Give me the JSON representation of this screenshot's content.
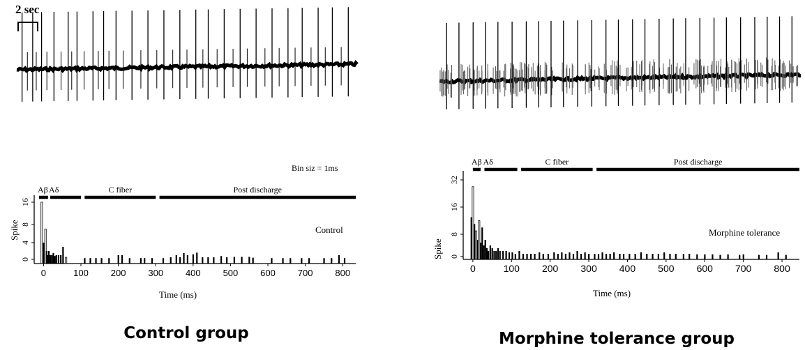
{
  "figure": {
    "scale_bar_label": "2 sec",
    "colors": {
      "ink": "#000000",
      "bar_hollow": "#ffffff",
      "trace_light": "#555555"
    }
  },
  "chart_data": [
    {
      "type": "line",
      "panel": "control-trace",
      "description_units": "raw extracellular recording",
      "spike_times_s": [
        0.3,
        0.9,
        1.4,
        2.1,
        2.9,
        3.4,
        4.3,
        4.9,
        5.6,
        6.5,
        7.4,
        8.3,
        9.2,
        10.1,
        10.8,
        11.7,
        12.6,
        13.5,
        14.4,
        15.3,
        16.1,
        17.0,
        17.8,
        18.7
      ],
      "small_spike_times_s": [
        0.6,
        1.1,
        1.7,
        2.5,
        3.1,
        3.8,
        4.6,
        5.2,
        6.0,
        7.0,
        7.9,
        8.8,
        9.6,
        10.5,
        11.3,
        12.2,
        13.0,
        14.0,
        14.8,
        15.7,
        16.6,
        17.4,
        18.3
      ]
    },
    {
      "type": "line",
      "panel": "morphine-trace",
      "description_units": "raw extracellular recording",
      "spike_times_s": [
        0.4,
        1.1,
        1.9,
        2.6,
        3.3,
        4.1,
        4.9,
        5.6,
        6.3,
        7.0,
        7.8,
        8.6,
        9.4,
        10.1,
        10.9,
        11.6,
        12.4,
        13.2,
        13.9,
        14.7,
        15.5,
        16.2,
        17.0,
        17.8,
        18.5,
        19.2,
        19.9
      ],
      "dense_small_spikes_per_s": 9
    },
    {
      "type": "bar",
      "panel": "control-psth",
      "annotation": "Bin siz = 1ms",
      "label": "Control",
      "xlabel": "Time (ms)",
      "ylabel": "Spike",
      "xticks": [
        "0",
        "100",
        "200",
        "300",
        "400",
        "500",
        "600",
        "700",
        "800"
      ],
      "yticks": [
        "0",
        "4",
        "8",
        "16"
      ],
      "xlim": [
        -25,
        835
      ],
      "segments": [
        {
          "label": "Aβ",
          "start_ms": -12,
          "end_ms": 12
        },
        {
          "label": "Aδ",
          "start_ms": 18,
          "end_ms": 100
        },
        {
          "label": "C fiber",
          "start_ms": 110,
          "end_ms": 300
        },
        {
          "label": "Post discharge",
          "start_ms": 310,
          "end_ms": 835
        }
      ],
      "bars_ms_value": [
        [
          -5,
          16
        ],
        [
          0,
          4
        ],
        [
          5,
          7
        ],
        [
          8,
          2
        ],
        [
          11,
          1
        ],
        [
          14,
          2
        ],
        [
          18,
          1
        ],
        [
          22,
          1
        ],
        [
          26,
          1.5
        ],
        [
          30,
          0.8
        ],
        [
          34,
          1
        ],
        [
          40,
          1
        ],
        [
          46,
          1
        ],
        [
          52,
          3
        ],
        [
          60,
          0.5
        ],
        [
          110,
          0.3
        ],
        [
          125,
          0.3
        ],
        [
          140,
          0.3
        ],
        [
          155,
          0.3
        ],
        [
          175,
          0.3
        ],
        [
          200,
          1
        ],
        [
          210,
          1
        ],
        [
          230,
          0.3
        ],
        [
          260,
          0.3
        ],
        [
          270,
          0.3
        ],
        [
          290,
          0.3
        ],
        [
          320,
          0.3
        ],
        [
          340,
          0.5
        ],
        [
          355,
          1
        ],
        [
          365,
          0.5
        ],
        [
          375,
          1.5
        ],
        [
          385,
          1
        ],
        [
          400,
          1.2
        ],
        [
          410,
          1.6
        ],
        [
          425,
          0.5
        ],
        [
          440,
          0.5
        ],
        [
          455,
          0.5
        ],
        [
          475,
          0.8
        ],
        [
          490,
          0.5
        ],
        [
          510,
          0.6
        ],
        [
          530,
          0.6
        ],
        [
          550,
          0.6
        ],
        [
          560,
          0.4
        ],
        [
          610,
          0.3
        ],
        [
          640,
          0.3
        ],
        [
          660,
          0.3
        ],
        [
          690,
          0.3
        ],
        [
          710,
          0.3
        ],
        [
          750,
          0.3
        ],
        [
          770,
          0.3
        ],
        [
          790,
          1
        ],
        [
          805,
          0.3
        ]
      ]
    },
    {
      "type": "bar",
      "panel": "morphine-psth",
      "label": "Morphine tolerance",
      "xlabel": "Time (ms)",
      "ylabel": "Spike",
      "xticks": [
        "0",
        "100",
        "200",
        "300",
        "400",
        "500",
        "600",
        "700",
        "800"
      ],
      "yticks": [
        "0",
        "8",
        "16",
        "32"
      ],
      "xlim": [
        -25,
        845
      ],
      "segments": [
        {
          "label": "Aβ",
          "start_ms": 0,
          "end_ms": 20
        },
        {
          "label": "Aδ",
          "start_ms": 30,
          "end_ms": 115
        },
        {
          "label": "C fiber",
          "start_ms": 125,
          "end_ms": 310
        },
        {
          "label": "Post discharge",
          "start_ms": 320,
          "end_ms": 845
        }
      ],
      "bars_ms_value": [
        [
          -4,
          13
        ],
        [
          0,
          28
        ],
        [
          4,
          11
        ],
        [
          8,
          9
        ],
        [
          12,
          6
        ],
        [
          16,
          12
        ],
        [
          20,
          5
        ],
        [
          24,
          10
        ],
        [
          28,
          4
        ],
        [
          32,
          6
        ],
        [
          36,
          3
        ],
        [
          40,
          2
        ],
        [
          45,
          4
        ],
        [
          50,
          3
        ],
        [
          55,
          2
        ],
        [
          60,
          2
        ],
        [
          65,
          3
        ],
        [
          70,
          2
        ],
        [
          78,
          2
        ],
        [
          86,
          2
        ],
        [
          94,
          1.5
        ],
        [
          102,
          1.5
        ],
        [
          110,
          1
        ],
        [
          120,
          2
        ],
        [
          130,
          1
        ],
        [
          140,
          1
        ],
        [
          150,
          1
        ],
        [
          160,
          1
        ],
        [
          172,
          1.5
        ],
        [
          182,
          1
        ],
        [
          195,
          1
        ],
        [
          210,
          1.5
        ],
        [
          220,
          1
        ],
        [
          230,
          1.5
        ],
        [
          240,
          1
        ],
        [
          250,
          1.5
        ],
        [
          260,
          1
        ],
        [
          270,
          2
        ],
        [
          280,
          1
        ],
        [
          290,
          1.5
        ],
        [
          300,
          1
        ],
        [
          315,
          1
        ],
        [
          325,
          1
        ],
        [
          335,
          1.5
        ],
        [
          345,
          1
        ],
        [
          355,
          1
        ],
        [
          365,
          1.5
        ],
        [
          380,
          1
        ],
        [
          390,
          1
        ],
        [
          405,
          1
        ],
        [
          420,
          1
        ],
        [
          435,
          1.5
        ],
        [
          450,
          1
        ],
        [
          465,
          1
        ],
        [
          480,
          1
        ],
        [
          495,
          1.5
        ],
        [
          510,
          1
        ],
        [
          525,
          1
        ],
        [
          545,
          1
        ],
        [
          560,
          1
        ],
        [
          580,
          0.8
        ],
        [
          600,
          0.8
        ],
        [
          620,
          0.8
        ],
        [
          640,
          0.6
        ],
        [
          660,
          0.8
        ],
        [
          690,
          0.6
        ],
        [
          700,
          0.8
        ],
        [
          740,
          0.6
        ],
        [
          760,
          0.6
        ],
        [
          790,
          1.5
        ],
        [
          810,
          0.6
        ]
      ]
    }
  ],
  "captions": {
    "left": "Control group",
    "right": "Morphine tolerance group"
  }
}
